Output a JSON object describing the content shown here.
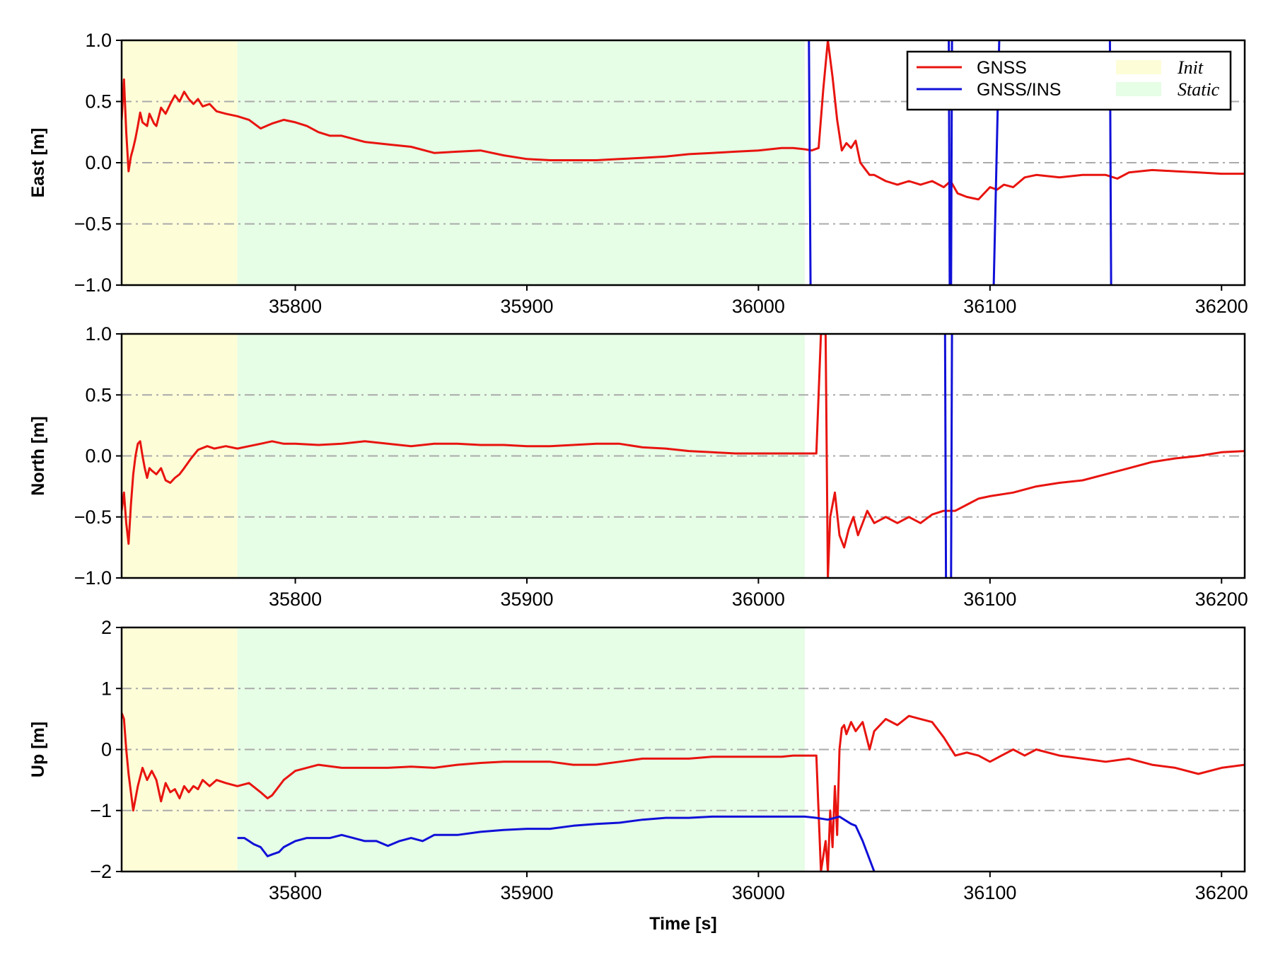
{
  "chart_data": [
    {
      "type": "line",
      "ylabel": "East [m]",
      "xlabel": "",
      "xlim": [
        35725,
        36210
      ],
      "ylim": [
        -1.0,
        1.0
      ],
      "xticks": [
        "35800",
        "35900",
        "36000",
        "36100",
        "36200"
      ],
      "yticks": [
        "1.0",
        "0.5",
        "0.0",
        "−0.5",
        "−1.0"
      ],
      "ytick_values": [
        1.0,
        0.5,
        0.0,
        -0.5,
        -1.0
      ],
      "grid": "horizontal dash-dot",
      "shaded_regions": [
        {
          "name": "Init",
          "x": [
            35725,
            35775
          ],
          "color": "#fdfdd8"
        },
        {
          "name": "Static",
          "x": [
            35775,
            36020
          ],
          "color": "#e6fde6"
        }
      ],
      "legend": {
        "placement": "top-right",
        "entries": [
          {
            "label": "GNSS",
            "color": "#e8140f",
            "kind": "line"
          },
          {
            "label": "GNSS/INS",
            "color": "#1010d8",
            "kind": "line"
          },
          {
            "label": "Init",
            "color": "#fdfdd8",
            "kind": "patch"
          },
          {
            "label": "Static",
            "color": "#e6fde6",
            "kind": "patch"
          }
        ]
      },
      "series": [
        {
          "name": "GNSS",
          "color": "#e8140f",
          "x": [
            35725,
            35726,
            35727,
            35728,
            35729,
            35730,
            35731,
            35732,
            35733,
            35734,
            35736,
            35737,
            35739,
            35740,
            35742,
            35744,
            35746,
            35748,
            35750,
            35752,
            35754,
            35756,
            35758,
            35760,
            35763,
            35766,
            35770,
            35775,
            35780,
            35785,
            35790,
            35795,
            35800,
            35805,
            35810,
            35815,
            35820,
            35830,
            35840,
            35850,
            35860,
            35870,
            35880,
            35890,
            35900,
            35910,
            35920,
            35930,
            35940,
            35950,
            35960,
            35970,
            35980,
            35990,
            36000,
            36010,
            36015,
            36020,
            36023,
            36026,
            36028,
            36030,
            36032,
            36034,
            36036,
            36038,
            36040,
            36042,
            36044,
            36046,
            36048,
            36050,
            36055,
            36060,
            36065,
            36070,
            36075,
            36080,
            36083,
            36086,
            36090,
            36095,
            36100,
            36103,
            36106,
            36110,
            36115,
            36120,
            36130,
            36140,
            36150,
            36155,
            36160,
            36170,
            36180,
            36190,
            36200,
            36210
          ],
          "y": [
            0.35,
            0.68,
            0.25,
            -0.07,
            0.05,
            0.12,
            0.2,
            0.3,
            0.41,
            0.33,
            0.3,
            0.4,
            0.32,
            0.3,
            0.45,
            0.4,
            0.48,
            0.55,
            0.5,
            0.58,
            0.52,
            0.48,
            0.52,
            0.46,
            0.48,
            0.42,
            0.4,
            0.38,
            0.35,
            0.28,
            0.32,
            0.35,
            0.33,
            0.3,
            0.25,
            0.22,
            0.22,
            0.17,
            0.15,
            0.13,
            0.08,
            0.09,
            0.1,
            0.06,
            0.03,
            0.02,
            0.02,
            0.02,
            0.03,
            0.04,
            0.05,
            0.07,
            0.08,
            0.09,
            0.1,
            0.12,
            0.12,
            0.11,
            0.1,
            0.12,
            0.6,
            1.0,
            0.7,
            0.35,
            0.1,
            0.16,
            0.12,
            0.18,
            0.0,
            -0.05,
            -0.1,
            -0.1,
            -0.15,
            -0.18,
            -0.15,
            -0.18,
            -0.15,
            -0.2,
            -0.15,
            -0.25,
            -0.28,
            -0.3,
            -0.2,
            -0.22,
            -0.18,
            -0.2,
            -0.12,
            -0.1,
            -0.12,
            -0.1,
            -0.1,
            -0.13,
            -0.08,
            -0.06,
            -0.07,
            -0.08,
            -0.09,
            -0.09
          ]
        },
        {
          "name": "GNSS/INS",
          "color": "#1010d8",
          "segments": [
            {
              "x": [
                36021.8,
                36022.5
              ],
              "y": [
                1.0,
                -1.0
              ]
            },
            {
              "x": [
                36082.2,
                36082.6
              ],
              "y": [
                1.0,
                -1.0
              ]
            },
            {
              "x": [
                36083.2,
                36083.6
              ],
              "y": [
                -1.0,
                1.0
              ]
            },
            {
              "x": [
                36101.6,
                36104.0
              ],
              "y": [
                -1.0,
                1.0
              ]
            },
            {
              "x": [
                36151.8,
                36152.3
              ],
              "y": [
                1.0,
                -1.0
              ]
            }
          ]
        }
      ]
    },
    {
      "type": "line",
      "ylabel": "North [m]",
      "xlabel": "",
      "xlim": [
        35725,
        36210
      ],
      "ylim": [
        -1.0,
        1.0
      ],
      "xticks": [
        "35800",
        "35900",
        "36000",
        "36100",
        "36200"
      ],
      "yticks": [
        "1.0",
        "0.5",
        "0.0",
        "−0.5",
        "−1.0"
      ],
      "ytick_values": [
        1.0,
        0.5,
        0.0,
        -0.5,
        -1.0
      ],
      "grid": "horizontal dash-dot",
      "shaded_regions": [
        {
          "name": "Init",
          "x": [
            35725,
            35775
          ],
          "color": "#fdfdd8"
        },
        {
          "name": "Static",
          "x": [
            35775,
            36020
          ],
          "color": "#e6fde6"
        }
      ],
      "series": [
        {
          "name": "GNSS",
          "color": "#e8140f",
          "x": [
            35725,
            35726,
            35727,
            35728,
            35729,
            35730,
            35731,
            35732,
            35733,
            35734,
            35735,
            35736,
            35737,
            35738,
            35740,
            35742,
            35744,
            35746,
            35748,
            35750,
            35752,
            35755,
            35758,
            35762,
            35765,
            35770,
            35775,
            35780,
            35785,
            35790,
            35795,
            35800,
            35810,
            35820,
            35830,
            35840,
            35850,
            35860,
            35870,
            35880,
            35890,
            35900,
            35910,
            35920,
            35930,
            35940,
            35950,
            35960,
            35970,
            35980,
            35990,
            36000,
            36010,
            36020,
            36023,
            36025,
            36027,
            36029,
            36030,
            36031,
            36033,
            36035,
            36037,
            36039,
            36041,
            36043,
            36045,
            36047,
            36050,
            36055,
            36060,
            36065,
            36070,
            36075,
            36080,
            36085,
            36090,
            36095,
            36100,
            36110,
            36120,
            36130,
            36140,
            36150,
            36160,
            36170,
            36180,
            36190,
            36200,
            36210
          ],
          "y": [
            -0.45,
            -0.3,
            -0.55,
            -0.72,
            -0.4,
            -0.15,
            0.0,
            0.1,
            0.12,
            0.0,
            -0.1,
            -0.18,
            -0.1,
            -0.12,
            -0.15,
            -0.1,
            -0.2,
            -0.22,
            -0.18,
            -0.15,
            -0.1,
            -0.02,
            0.05,
            0.08,
            0.06,
            0.08,
            0.06,
            0.08,
            0.1,
            0.12,
            0.1,
            0.1,
            0.09,
            0.1,
            0.12,
            0.1,
            0.08,
            0.1,
            0.1,
            0.09,
            0.09,
            0.08,
            0.08,
            0.09,
            0.1,
            0.1,
            0.07,
            0.06,
            0.04,
            0.03,
            0.02,
            0.02,
            0.02,
            0.02,
            0.02,
            0.02,
            1.0,
            1.0,
            -1.0,
            -0.5,
            -0.3,
            -0.65,
            -0.75,
            -0.6,
            -0.5,
            -0.65,
            -0.55,
            -0.45,
            -0.55,
            -0.5,
            -0.55,
            -0.5,
            -0.55,
            -0.48,
            -0.45,
            -0.45,
            -0.4,
            -0.35,
            -0.33,
            -0.3,
            -0.25,
            -0.22,
            -0.2,
            -0.15,
            -0.1,
            -0.05,
            -0.02,
            0.0,
            0.03,
            0.04
          ]
        },
        {
          "name": "GNSS/INS",
          "color": "#1010d8",
          "segments": [
            {
              "x": [
                36080.6,
                36081.0
              ],
              "y": [
                1.0,
                -1.0
              ]
            },
            {
              "x": [
                36083.2,
                36083.6
              ],
              "y": [
                -1.0,
                1.0
              ]
            }
          ]
        }
      ]
    },
    {
      "type": "line",
      "ylabel": "Up [m]",
      "xlabel": "Time [s]",
      "xlim": [
        35725,
        36210
      ],
      "ylim": [
        -2,
        2
      ],
      "xticks": [
        "35800",
        "35900",
        "36000",
        "36100",
        "36200"
      ],
      "yticks": [
        "2",
        "1",
        "0",
        "−1",
        "−2"
      ],
      "ytick_values": [
        2,
        1,
        0,
        -1,
        -2
      ],
      "grid": "horizontal dash-dot",
      "shaded_regions": [
        {
          "name": "Init",
          "x": [
            35725,
            35775
          ],
          "color": "#fdfdd8"
        },
        {
          "name": "Static",
          "x": [
            35775,
            36020
          ],
          "color": "#e6fde6"
        }
      ],
      "series": [
        {
          "name": "GNSS",
          "color": "#e8140f",
          "x": [
            35725,
            35726,
            35727,
            35728,
            35730,
            35732,
            35734,
            35736,
            35738,
            35740,
            35742,
            35744,
            35746,
            35748,
            35750,
            35752,
            35754,
            35756,
            35758,
            35760,
            35763,
            35766,
            35770,
            35775,
            35780,
            35785,
            35788,
            35790,
            35795,
            35800,
            35810,
            35820,
            35830,
            35840,
            35850,
            35860,
            35870,
            35880,
            35890,
            35900,
            35910,
            35920,
            35930,
            35940,
            35950,
            35960,
            35970,
            35980,
            35990,
            36000,
            36010,
            36015,
            36020,
            36025,
            36027,
            36029,
            36030,
            36031,
            36032,
            36033,
            36034,
            36035,
            36036,
            36037,
            36038,
            36040,
            36042,
            36045,
            36048,
            36050,
            36055,
            36060,
            36065,
            36070,
            36075,
            36080,
            36085,
            36090,
            36095,
            36100,
            36105,
            36110,
            36115,
            36120,
            36130,
            36140,
            36150,
            36160,
            36170,
            36180,
            36190,
            36200,
            36210
          ],
          "y": [
            0.6,
            0.5,
            0.0,
            -0.4,
            -1.0,
            -0.6,
            -0.3,
            -0.5,
            -0.35,
            -0.5,
            -0.85,
            -0.55,
            -0.7,
            -0.65,
            -0.8,
            -0.6,
            -0.7,
            -0.6,
            -0.65,
            -0.5,
            -0.6,
            -0.5,
            -0.55,
            -0.6,
            -0.55,
            -0.7,
            -0.8,
            -0.75,
            -0.5,
            -0.35,
            -0.25,
            -0.3,
            -0.3,
            -0.3,
            -0.28,
            -0.3,
            -0.25,
            -0.22,
            -0.2,
            -0.2,
            -0.2,
            -0.25,
            -0.25,
            -0.2,
            -0.15,
            -0.15,
            -0.15,
            -0.12,
            -0.12,
            -0.12,
            -0.12,
            -0.1,
            -0.1,
            -0.1,
            -2.0,
            -1.5,
            -2.0,
            -1.0,
            -1.6,
            -0.6,
            -1.4,
            0.0,
            0.35,
            0.4,
            0.25,
            0.45,
            0.3,
            0.45,
            0.0,
            0.3,
            0.5,
            0.4,
            0.55,
            0.5,
            0.45,
            0.2,
            -0.1,
            -0.05,
            -0.1,
            -0.2,
            -0.1,
            0.0,
            -0.1,
            0.0,
            -0.1,
            -0.15,
            -0.2,
            -0.15,
            -0.25,
            -0.3,
            -0.4,
            -0.3,
            -0.25
          ]
        },
        {
          "name": "GNSS/INS",
          "color": "#1010d8",
          "x": [
            35775,
            35778,
            35780,
            35782,
            35785,
            35788,
            35790,
            35793,
            35795,
            35800,
            35805,
            35810,
            35815,
            35820,
            35825,
            35830,
            35835,
            35840,
            35845,
            35850,
            35855,
            35860,
            35870,
            35880,
            35890,
            35900,
            35910,
            35920,
            35930,
            35940,
            35950,
            35960,
            35970,
            35980,
            35990,
            36000,
            36010,
            36020,
            36025,
            36030,
            36035,
            36040,
            36042,
            36045,
            36050
          ],
          "y": [
            -1.45,
            -1.45,
            -1.5,
            -1.55,
            -1.6,
            -1.75,
            -1.72,
            -1.68,
            -1.6,
            -1.5,
            -1.45,
            -1.45,
            -1.45,
            -1.4,
            -1.45,
            -1.5,
            -1.5,
            -1.58,
            -1.5,
            -1.45,
            -1.5,
            -1.4,
            -1.4,
            -1.35,
            -1.32,
            -1.3,
            -1.3,
            -1.25,
            -1.22,
            -1.2,
            -1.15,
            -1.12,
            -1.12,
            -1.1,
            -1.1,
            -1.1,
            -1.1,
            -1.1,
            -1.12,
            -1.15,
            -1.1,
            -1.22,
            -1.25,
            -1.5,
            -2.0
          ]
        }
      ]
    }
  ]
}
